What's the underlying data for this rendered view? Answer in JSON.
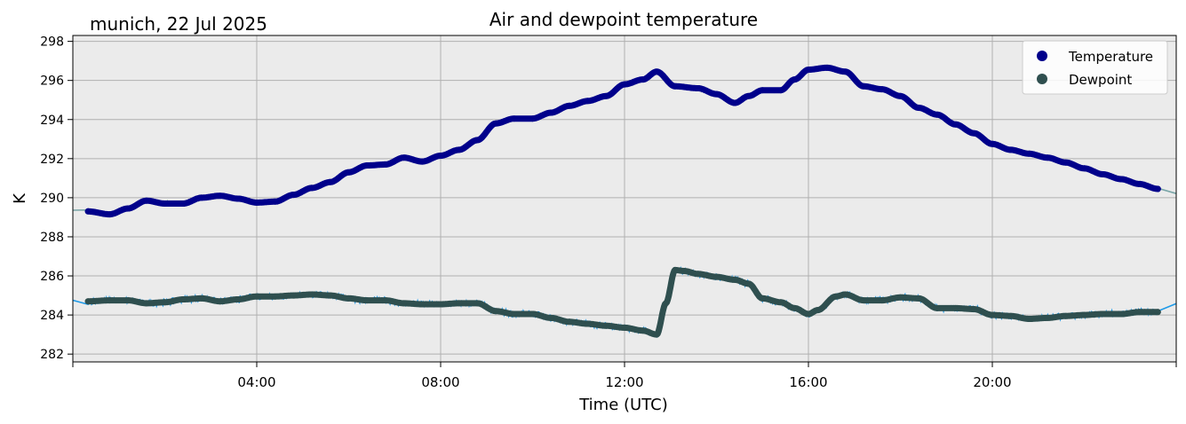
{
  "chart_data": {
    "type": "line",
    "title": "Air and dewpoint temperature",
    "subtitle": "munich, 22 Jul 2025",
    "xlabel": "Time (UTC)",
    "ylabel": "K",
    "xlim": [
      0,
      24
    ],
    "ylim": [
      281.6,
      298.3
    ],
    "grid": true,
    "legend_position": "top-right",
    "x_ticks": [
      4,
      8,
      12,
      16,
      20
    ],
    "x_tick_labels": [
      "04:00",
      "08:00",
      "12:00",
      "16:00",
      "20:00"
    ],
    "y_ticks": [
      282,
      284,
      286,
      288,
      290,
      292,
      294,
      296,
      298
    ],
    "y_tick_labels": [
      "282",
      "284",
      "286",
      "288",
      "290",
      "292",
      "294",
      "296",
      "298"
    ],
    "colors": {
      "plot_background": "#ebebeb",
      "grid": "#b0b0b0",
      "temperature": "#00008b",
      "dewpoint": "#2f4f4f",
      "temperature_raw": "#7aa6a8",
      "dewpoint_raw": "#1e9ae8"
    },
    "series": [
      {
        "name": "Temperature",
        "x": [
          0.33,
          0.8,
          1.2,
          1.6,
          2.0,
          2.4,
          2.8,
          3.2,
          3.6,
          4.0,
          4.4,
          4.8,
          5.2,
          5.6,
          6.0,
          6.4,
          6.8,
          7.2,
          7.6,
          8.0,
          8.4,
          8.8,
          9.2,
          9.6,
          10.0,
          10.4,
          10.8,
          11.2,
          11.6,
          12.0,
          12.4,
          12.7,
          13.1,
          13.6,
          14.0,
          14.4,
          14.7,
          15.0,
          15.4,
          15.7,
          16.0,
          16.4,
          16.8,
          17.2,
          17.6,
          18.0,
          18.4,
          18.8,
          19.2,
          19.6,
          20.0,
          20.4,
          20.8,
          21.2,
          21.6,
          22.0,
          22.4,
          22.8,
          23.2,
          23.6
        ],
        "y": [
          289.3,
          289.15,
          289.45,
          289.85,
          289.7,
          289.7,
          290.0,
          290.1,
          289.95,
          289.75,
          289.8,
          290.15,
          290.5,
          290.8,
          291.3,
          291.65,
          291.7,
          292.05,
          291.85,
          292.15,
          292.45,
          292.95,
          293.8,
          294.05,
          294.05,
          294.35,
          294.7,
          294.95,
          295.2,
          295.8,
          296.05,
          296.45,
          295.7,
          295.6,
          295.3,
          294.85,
          295.2,
          295.5,
          295.5,
          296.05,
          296.55,
          296.65,
          296.45,
          295.7,
          295.55,
          295.2,
          294.6,
          294.25,
          293.75,
          293.3,
          292.75,
          292.45,
          292.25,
          292.05,
          291.8,
          291.5,
          291.2,
          290.95,
          290.7,
          290.45
        ]
      },
      {
        "name": "Dewpoint",
        "x": [
          0.33,
          0.8,
          1.2,
          1.6,
          2.0,
          2.4,
          2.8,
          3.2,
          3.6,
          4.0,
          4.4,
          4.8,
          5.2,
          5.6,
          6.0,
          6.4,
          6.8,
          7.2,
          7.6,
          8.0,
          8.4,
          8.8,
          9.2,
          9.6,
          10.0,
          10.4,
          10.8,
          11.2,
          11.6,
          12.0,
          12.4,
          12.7,
          12.9,
          13.1,
          13.3,
          13.6,
          14.0,
          14.4,
          14.7,
          15.0,
          15.4,
          15.7,
          16.0,
          16.2,
          16.6,
          16.8,
          17.2,
          17.6,
          18.0,
          18.4,
          18.8,
          19.2,
          19.6,
          20.0,
          20.4,
          20.8,
          21.2,
          21.6,
          22.0,
          22.4,
          22.8,
          23.2,
          23.6
        ],
        "y": [
          284.7,
          284.75,
          284.75,
          284.6,
          284.65,
          284.8,
          284.85,
          284.7,
          284.8,
          284.95,
          284.95,
          285.0,
          285.05,
          285.0,
          284.85,
          284.75,
          284.75,
          284.6,
          284.55,
          284.55,
          284.6,
          284.6,
          284.2,
          284.05,
          284.05,
          283.85,
          283.65,
          283.55,
          283.45,
          283.35,
          283.2,
          283.0,
          284.6,
          286.3,
          286.25,
          286.1,
          285.95,
          285.8,
          285.6,
          284.85,
          284.65,
          284.35,
          284.05,
          284.25,
          284.95,
          285.05,
          284.75,
          284.75,
          284.9,
          284.85,
          284.35,
          284.35,
          284.3,
          284.0,
          283.95,
          283.8,
          283.85,
          283.95,
          284.0,
          284.05,
          284.05,
          284.15,
          284.15
        ]
      }
    ]
  }
}
